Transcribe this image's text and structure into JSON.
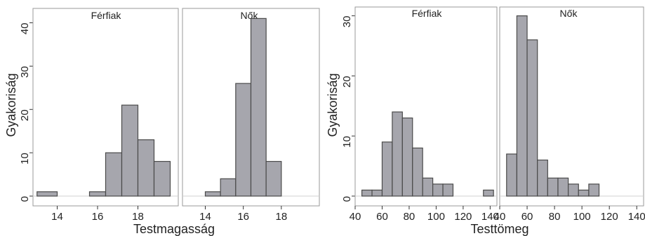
{
  "chart_data": [
    {
      "type": "bar",
      "xlabel": "Testmagasság",
      "ylabel": "Gyakoriság",
      "ylim": [
        0,
        43
      ],
      "yticks": [
        0,
        10,
        20,
        30,
        40
      ],
      "panels": [
        {
          "label": "Férfiak",
          "xlim": [
            12.8,
            20.0
          ],
          "xticks": [
            14,
            16,
            18
          ],
          "bins": [
            {
              "x0": 13.0,
              "x1": 14.0,
              "count": 1
            },
            {
              "x0": 15.6,
              "x1": 16.4,
              "count": 1
            },
            {
              "x0": 16.4,
              "x1": 17.2,
              "count": 10
            },
            {
              "x0": 17.2,
              "x1": 18.0,
              "count": 21
            },
            {
              "x0": 18.0,
              "x1": 18.8,
              "count": 13
            },
            {
              "x0": 18.8,
              "x1": 19.6,
              "count": 8
            }
          ]
        },
        {
          "label": "Nők",
          "xlim": [
            12.8,
            20.0
          ],
          "xticks": [
            14,
            16,
            18
          ],
          "bins": [
            {
              "x0": 14.0,
              "x1": 14.8,
              "count": 1
            },
            {
              "x0": 14.8,
              "x1": 15.6,
              "count": 4
            },
            {
              "x0": 15.6,
              "x1": 16.4,
              "count": 26
            },
            {
              "x0": 16.4,
              "x1": 17.2,
              "count": 41
            },
            {
              "x0": 17.2,
              "x1": 18.0,
              "count": 8
            }
          ]
        }
      ]
    },
    {
      "type": "bar",
      "xlabel": "Testtömeg",
      "ylabel": "Gyakoriság",
      "ylim": [
        0,
        31
      ],
      "yticks": [
        0,
        10,
        20,
        30
      ],
      "panels": [
        {
          "label": "Férfiak",
          "xlim": [
            40,
            145
          ],
          "xticks": [
            40,
            60,
            80,
            100,
            120,
            140
          ],
          "bins": [
            {
              "x0": 45,
              "x1": 52.5,
              "count": 1
            },
            {
              "x0": 52.5,
              "x1": 60,
              "count": 1
            },
            {
              "x0": 60,
              "x1": 67.5,
              "count": 9
            },
            {
              "x0": 67.5,
              "x1": 75,
              "count": 14
            },
            {
              "x0": 75,
              "x1": 82.5,
              "count": 13
            },
            {
              "x0": 82.5,
              "x1": 90,
              "count": 8
            },
            {
              "x0": 90,
              "x1": 97.5,
              "count": 3
            },
            {
              "x0": 97.5,
              "x1": 105,
              "count": 2
            },
            {
              "x0": 105,
              "x1": 112.5,
              "count": 2
            },
            {
              "x0": 135,
              "x1": 142.5,
              "count": 1
            }
          ]
        },
        {
          "label": "Nők",
          "xlim": [
            40,
            145
          ],
          "xticks": [
            40,
            60,
            80,
            100,
            120,
            140
          ],
          "bins": [
            {
              "x0": 45,
              "x1": 52.5,
              "count": 7
            },
            {
              "x0": 52.5,
              "x1": 60,
              "count": 30
            },
            {
              "x0": 60,
              "x1": 67.5,
              "count": 26
            },
            {
              "x0": 67.5,
              "x1": 75,
              "count": 6
            },
            {
              "x0": 75,
              "x1": 82.5,
              "count": 3
            },
            {
              "x0": 82.5,
              "x1": 90,
              "count": 3
            },
            {
              "x0": 90,
              "x1": 97.5,
              "count": 2
            },
            {
              "x0": 97.5,
              "x1": 105,
              "count": 1
            },
            {
              "x0": 105,
              "x1": 112.5,
              "count": 2
            }
          ]
        }
      ]
    }
  ]
}
